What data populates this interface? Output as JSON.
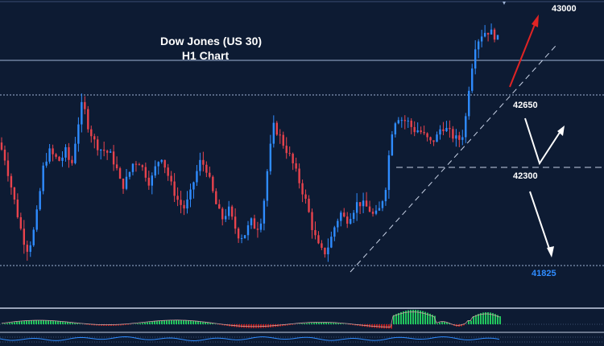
{
  "chart_data": {
    "type": "candlestick",
    "title": "Dow Jones (US 30)",
    "subtitle": "H1 Chart",
    "levels": [
      {
        "value": 43000,
        "label": "43000",
        "color": "#ffffff"
      },
      {
        "value": 42650,
        "label": "42650",
        "color": "#ffffff"
      },
      {
        "value": 42300,
        "label": "42300",
        "color": "#ffffff"
      },
      {
        "value": 41825,
        "label": "41825",
        "color": "#2f8cff"
      }
    ],
    "price_path": [
      42420,
      42360,
      42240,
      42120,
      42000,
      41900,
      41950,
      42100,
      42300,
      42380,
      42350,
      42330,
      42380,
      42300,
      42480,
      42620,
      42500,
      42430,
      42390,
      42380,
      42360,
      42300,
      42200,
      42250,
      42320,
      42330,
      42280,
      42220,
      42300,
      42360,
      42280,
      42200,
      42140,
      42100,
      42150,
      42250,
      42330,
      42300,
      42200,
      42100,
      42050,
      42100,
      42020,
      41960,
      41980,
      42040,
      42000,
      42060,
      42300,
      42500,
      42460,
      42400,
      42350,
      42280,
      42200,
      42120,
      42000,
      41920,
      41880,
      41930,
      42020,
      42080,
      42040,
      42080,
      42130,
      42120,
      42100,
      42060,
      42100,
      42200,
      42460,
      42550,
      42530,
      42520,
      42480,
      42480,
      42450,
      42420,
      42440,
      42500,
      42480,
      42450,
      42430,
      42470,
      42720,
      42890,
      42940,
      42960,
      42950,
      42920
    ],
    "trendline": {
      "from": [
        428,
        42130
      ],
      "to": [
        735,
        42650
      ]
    },
    "resistance_line": 42650,
    "annotations": {
      "up_target": "43000",
      "mid_level": "42300",
      "down_target": "41825"
    },
    "colors": {
      "bull": "#2f8cff",
      "bear": "#e8434d",
      "background": "#0d1b33",
      "grid": "#8ea4c8"
    },
    "oscillator": {
      "type": "histogram",
      "colors": [
        "#22c55e",
        "#b91c1c"
      ]
    }
  }
}
